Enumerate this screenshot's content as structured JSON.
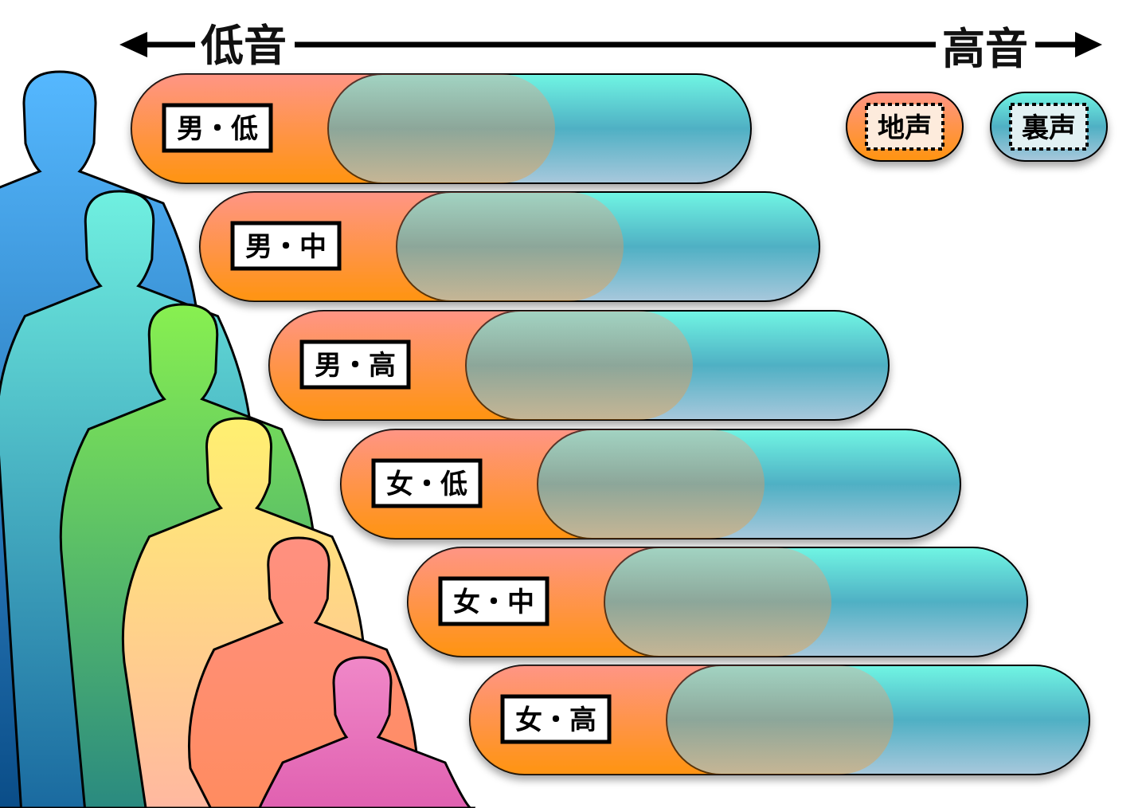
{
  "axis": {
    "low_label": "低音",
    "high_label": "高音"
  },
  "legend": [
    {
      "label": "地声",
      "color": "#ff9a2a"
    },
    {
      "label": "裏声",
      "color": "#5cc6d0"
    }
  ],
  "rows": [
    {
      "label": "男・低"
    },
    {
      "label": "男・中"
    },
    {
      "label": "男・高"
    },
    {
      "label": "女・低"
    },
    {
      "label": "女・中"
    },
    {
      "label": "女・高"
    }
  ],
  "colors": {
    "chest_top": "#ff9585",
    "chest_bottom": "#ff9410",
    "head_top": "#70f5e3",
    "head_mid": "#4fb0c4",
    "head_bottom": "#a8c8dc",
    "silhouettes": [
      "#3d8fd8",
      "#3fb8c8",
      "#5cc24a",
      "#fde070",
      "#ff9a80",
      "#f070b8"
    ]
  }
}
